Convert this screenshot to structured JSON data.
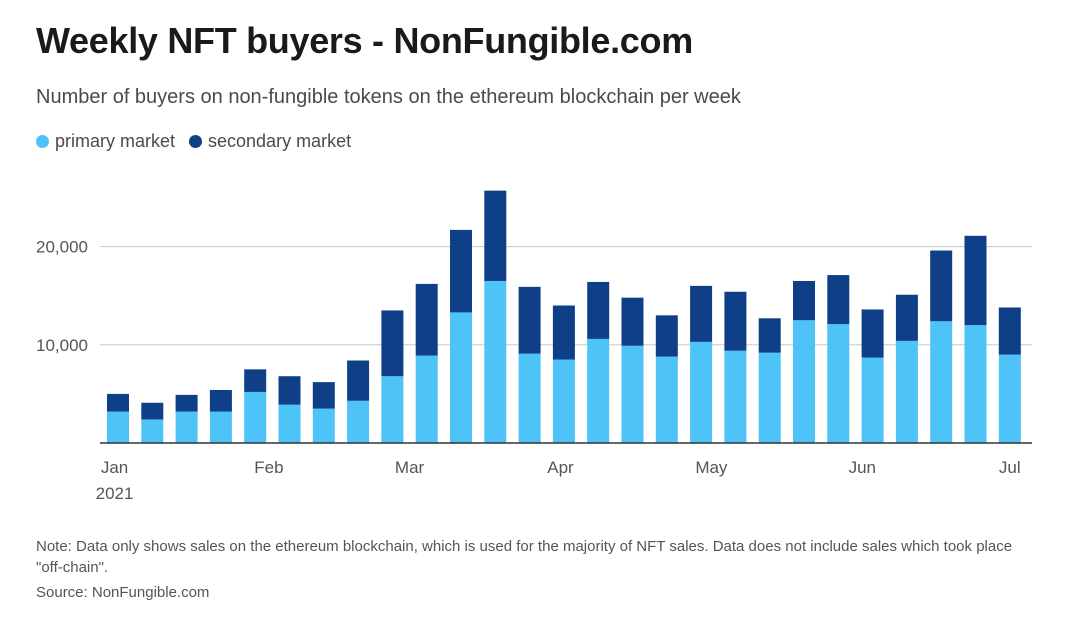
{
  "header": {
    "title": "Weekly NFT buyers - NonFungible.com",
    "subtitle": "Number of buyers on non-fungible tokens on the ethereum blockchain per week"
  },
  "legend": [
    {
      "label": "primary market",
      "color": "#4dc3f7"
    },
    {
      "label": "secondary market",
      "color": "#0f3f86"
    }
  ],
  "footer": {
    "note": "Note: Data only shows sales on the ethereum blockchain, which is used for the majority of NFT sales. Data does not include sales which took place \"off-chain\".",
    "source": "Source: NonFungible.com"
  },
  "chart_data": {
    "type": "bar",
    "stacked": true,
    "title": "Weekly NFT buyers - NonFungible.com",
    "subtitle": "Number of buyers on non-fungible tokens on the ethereum blockchain per week",
    "xlabel": "",
    "ylabel": "",
    "ylim": [
      0,
      25000
    ],
    "grid": true,
    "legend_position": "top-left",
    "y_ticks": [
      {
        "value": 10000,
        "label": "10,000"
      },
      {
        "value": 20000,
        "label": "20,000"
      }
    ],
    "x_ticks": [
      {
        "week": 0.9,
        "label": "Jan",
        "sublabel": "2021"
      },
      {
        "week": 5.4,
        "label": "Feb"
      },
      {
        "week": 9.5,
        "label": "Mar"
      },
      {
        "week": 13.9,
        "label": "Apr"
      },
      {
        "week": 18.3,
        "label": "May"
      },
      {
        "week": 22.7,
        "label": "Jun"
      },
      {
        "week": 27.0,
        "label": "Jul"
      }
    ],
    "weeks": 27,
    "series": [
      {
        "name": "primary market",
        "color": "#4dc3f7",
        "values": [
          3200,
          2400,
          3200,
          3200,
          5200,
          3900,
          3500,
          4300,
          6800,
          8900,
          13300,
          16500,
          9100,
          8500,
          10600,
          9900,
          8800,
          10300,
          9400,
          9200,
          12500,
          12100,
          8700,
          10400,
          12400,
          12000,
          9000
        ]
      },
      {
        "name": "secondary market",
        "color": "#0f3f86",
        "values": [
          1800,
          1700,
          1700,
          2200,
          2300,
          2900,
          2700,
          4100,
          6700,
          7300,
          8400,
          9200,
          6800,
          5500,
          5800,
          4900,
          4200,
          5700,
          6000,
          3500,
          4000,
          5000,
          4900,
          4700,
          7200,
          9100,
          4800
        ]
      }
    ]
  },
  "notes": {
    "colors": {
      "gridline": "#c8c8c8",
      "axis": "#333333",
      "text": "#555555"
    }
  }
}
